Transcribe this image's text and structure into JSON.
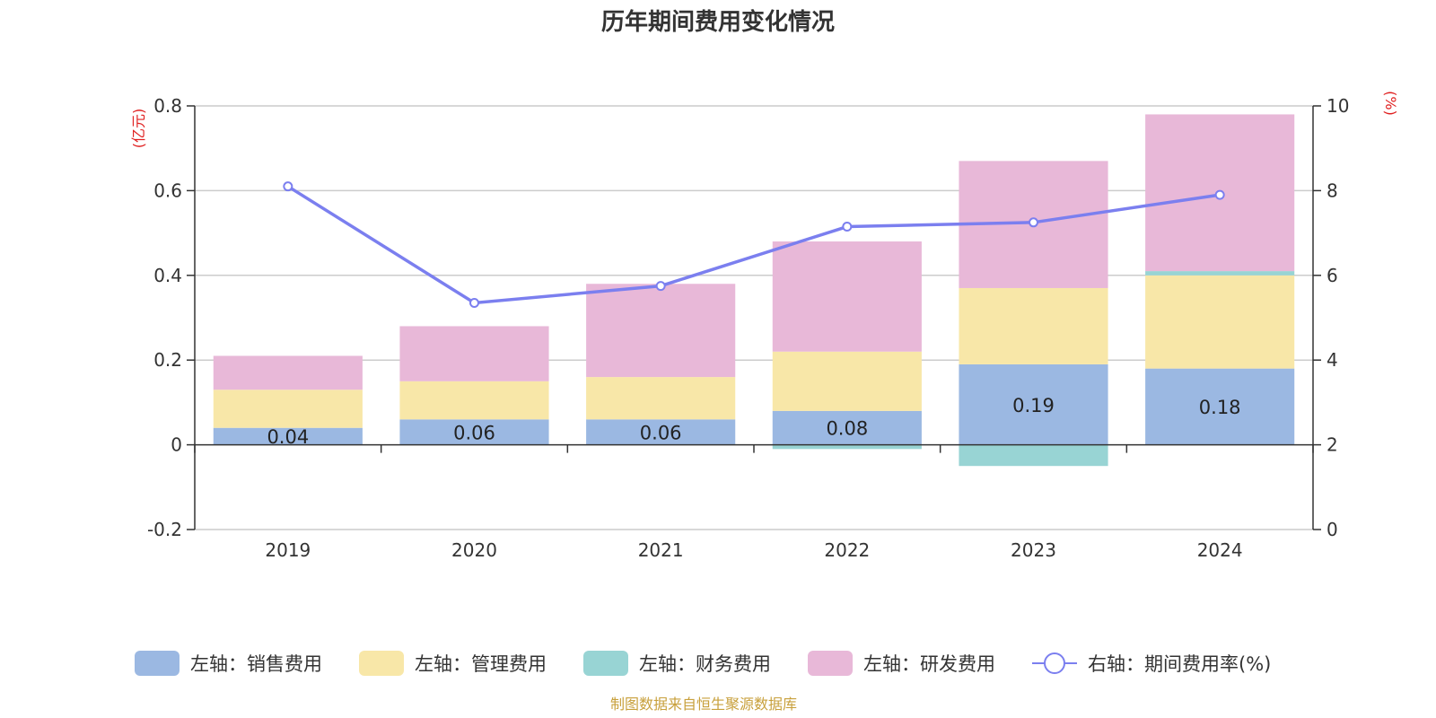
{
  "chart_data": {
    "type": "bar",
    "title": "历年期间费用变化情况",
    "left_unit": "(亿元)",
    "right_unit": "(%)",
    "categories": [
      "2019",
      "2020",
      "2021",
      "2022",
      "2023",
      "2024"
    ],
    "left_ylim": [
      -0.2,
      0.8
    ],
    "left_ticks": [
      "-0.2",
      "0",
      "0.2",
      "0.4",
      "0.6",
      "0.8"
    ],
    "right_ylim": [
      0,
      10
    ],
    "right_ticks": [
      "0",
      "2",
      "4",
      "6",
      "8",
      "10"
    ],
    "grid": true,
    "legend_position": "bottom",
    "series": [
      {
        "name": "左轴：销售费用",
        "type": "bar",
        "color": "#9bb8e2",
        "values": [
          0.04,
          0.06,
          0.06,
          0.08,
          0.19,
          0.18
        ],
        "labels": [
          "0.04",
          "0.06",
          "0.06",
          "0.08",
          "0.19",
          "0.18"
        ]
      },
      {
        "name": "左轴：管理费用",
        "type": "bar",
        "color": "#f8e7a8",
        "values": [
          0.09,
          0.09,
          0.1,
          0.14,
          0.18,
          0.22
        ]
      },
      {
        "name": "左轴：财务费用",
        "type": "bar",
        "color": "#98d4d4",
        "values": [
          0.0,
          0.0,
          0.0,
          -0.01,
          -0.05,
          0.01
        ]
      },
      {
        "name": "左轴：研发费用",
        "type": "bar",
        "color": "#e8b8d8",
        "values": [
          0.08,
          0.13,
          0.22,
          0.26,
          0.3,
          0.37
        ]
      },
      {
        "name": "右轴：期间费用率(%)",
        "type": "line",
        "color": "#7b7fef",
        "values": [
          8.1,
          5.35,
          5.75,
          7.15,
          7.25,
          7.9
        ]
      }
    ],
    "source": "制图数据来自恒生聚源数据库"
  }
}
